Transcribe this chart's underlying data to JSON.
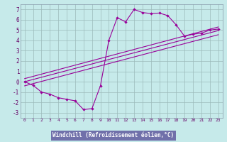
{
  "xlabel": "Windchill (Refroidissement éolien,°C)",
  "xlim": [
    -0.5,
    23.5
  ],
  "ylim": [
    -3.5,
    7.5
  ],
  "xticks": [
    0,
    1,
    2,
    3,
    4,
    5,
    6,
    7,
    8,
    9,
    10,
    11,
    12,
    13,
    14,
    15,
    16,
    17,
    18,
    19,
    20,
    21,
    22,
    23
  ],
  "yticks": [
    -3,
    -2,
    -1,
    0,
    1,
    2,
    3,
    4,
    5,
    6,
    7
  ],
  "bg_color": "#c6eaea",
  "plot_bg": "#c6eaea",
  "grid_color": "#9bbaba",
  "line_color": "#990099",
  "xlabel_bg": "#7070aa",
  "xlabel_fg": "#ffffff",
  "tick_color": "#660066",
  "jagged_x": [
    0,
    1,
    2,
    3,
    4,
    5,
    6,
    7,
    8,
    9,
    10,
    11,
    12,
    13,
    14,
    15,
    16,
    17,
    18,
    19,
    20,
    21,
    22,
    23
  ],
  "jagged_y": [
    0.0,
    -0.35,
    -1.0,
    -1.2,
    -1.55,
    -1.7,
    -1.85,
    -2.7,
    -2.6,
    -0.4,
    4.0,
    6.2,
    5.8,
    7.0,
    6.7,
    6.6,
    6.65,
    6.4,
    5.5,
    4.4,
    4.6,
    4.7,
    5.0,
    5.1
  ],
  "line1_x": [
    0,
    23
  ],
  "line1_y": [
    0.3,
    5.3
  ],
  "line2_x": [
    0,
    23
  ],
  "line2_y": [
    0.0,
    4.95
  ],
  "line3_x": [
    0,
    23
  ],
  "line3_y": [
    -0.4,
    4.55
  ]
}
